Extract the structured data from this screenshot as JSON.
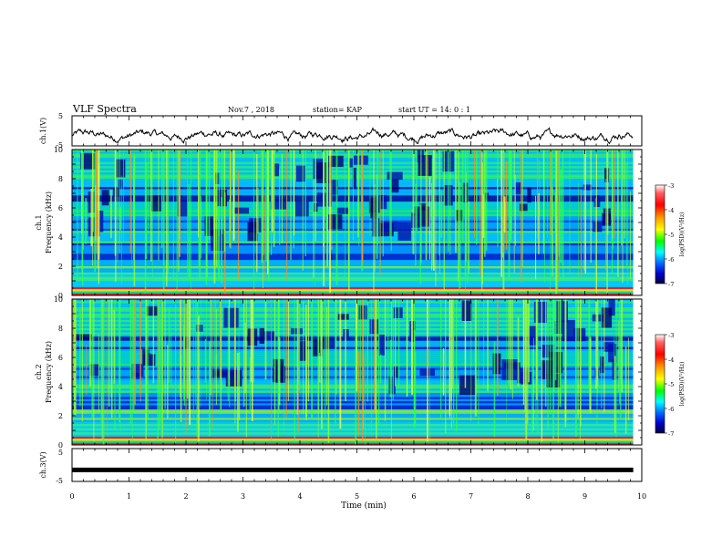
{
  "header": {
    "title": "VLF Spectra",
    "date": "Nov.7 , 2018",
    "station": "station= KAP",
    "start": "start UT = 14: 0 : 1"
  },
  "colorbar": {
    "label": "log(PSD)(V²/Hz)",
    "ticks": [
      "-3",
      "-4",
      "-5",
      "-6",
      "-7"
    ],
    "colors": [
      "#ffffff",
      "#ff0000",
      "#ff8c00",
      "#ffff00",
      "#00ff00",
      "#00ffff",
      "#0080ff",
      "#0000ff",
      "#000080",
      "#000000"
    ]
  },
  "chart_data": [
    {
      "type": "line",
      "panel": "ch.1",
      "ylabel": "ch.1(V)",
      "ylim": [
        -5,
        5
      ],
      "yticks": [
        "5",
        "-5"
      ],
      "xlim": [
        0,
        10
      ],
      "description_values": "fluctuating trace around approx -1.5 V with amplitude approx ±1.5 V over 0–9.85 min"
    },
    {
      "type": "heatmap",
      "panel": "ch.1",
      "ylabel": "ch.1\nFrequency (kHz)",
      "ylim": [
        0,
        10
      ],
      "yticks": [
        "0",
        "2",
        "4",
        "6",
        "8",
        "10"
      ],
      "xlim": [
        0,
        10
      ],
      "xmax_data": 9.85,
      "zlim": [
        -7,
        -3
      ]
    },
    {
      "type": "heatmap",
      "panel": "ch.2",
      "ylabel": "ch.2\nFrequency (kHz)",
      "ylim": [
        0,
        10
      ],
      "yticks": [
        "0",
        "2",
        "4",
        "6",
        "8",
        "10"
      ],
      "xlim": [
        0,
        10
      ],
      "xmax_data": 9.85,
      "zlim": [
        -7,
        -3
      ]
    },
    {
      "type": "line",
      "panel": "ch.3",
      "ylabel": "ch.3(V)",
      "ylim": [
        -5,
        5
      ],
      "yticks": [
        "5",
        "-5"
      ],
      "xlim": [
        0,
        10
      ],
      "x": [
        0,
        9.85
      ],
      "y": [
        -1.5,
        -1.5
      ]
    }
  ],
  "xaxis": {
    "label": "Time (min)",
    "ticks": [
      "0",
      "1",
      "2",
      "3",
      "4",
      "5",
      "6",
      "7",
      "8",
      "9",
      "10"
    ]
  }
}
